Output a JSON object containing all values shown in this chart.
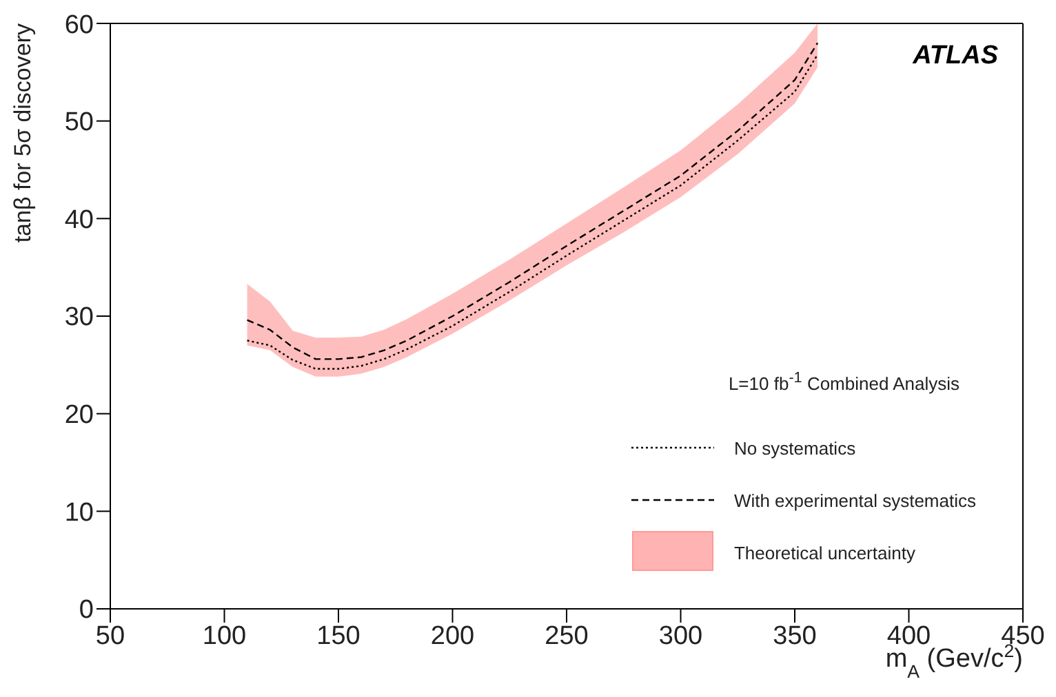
{
  "chart_data": {
    "type": "line",
    "xlabel": "m$_{A}$ (Gev/c$^{2}$)",
    "ylabel": "tanβ for 5σ discovery",
    "legend_title": "L=10 fb$^{-1}$ Combined Analysis",
    "annotations": [
      "ATLAS"
    ],
    "x": [
      110,
      120,
      130,
      140,
      150,
      160,
      170,
      180,
      200,
      225,
      250,
      275,
      300,
      325,
      350,
      360
    ],
    "xlim": [
      50,
      450
    ],
    "xticks": [
      50,
      100,
      150,
      200,
      250,
      300,
      350,
      400,
      450
    ],
    "ylim": [
      0,
      60
    ],
    "yticks": [
      0,
      10,
      20,
      30,
      40,
      50,
      60
    ],
    "grid": false,
    "legend": "bottom right",
    "marker": "none",
    "series": [
      {
        "name": "Theoretical uncertainty",
        "type": "area",
        "color": "#ffb3b3",
        "values": [
          null,
          null,
          null,
          null,
          null,
          null,
          null,
          null,
          null,
          null,
          null,
          null,
          null,
          null,
          null,
          null
        ],
        "lower": [
          27,
          26.5,
          24.8,
          23.8,
          23.8,
          24.1,
          24.8,
          25.8,
          28.2,
          31.6,
          35.2,
          38.6,
          42.2,
          46.6,
          51.8,
          55.5
        ],
        "upper": [
          33.3,
          31.5,
          28.5,
          27.8,
          27.8,
          27.9,
          28.6,
          29.7,
          32.3,
          35.8,
          39.5,
          43.2,
          47,
          51.7,
          57,
          60
        ]
      },
      {
        "name": "No systematics",
        "line_style": "dotted",
        "color": "#000000",
        "values": [
          27.5,
          27,
          25.5,
          24.6,
          24.6,
          24.9,
          25.6,
          26.6,
          29,
          32.5,
          36.2,
          39.8,
          43.4,
          48,
          53,
          56.8
        ]
      },
      {
        "name": "With experimental systematics",
        "line_style": "dashed",
        "color": "#000000",
        "values": [
          29.6,
          28.6,
          26.8,
          25.6,
          25.6,
          25.8,
          26.5,
          27.5,
          30,
          33.5,
          37.2,
          40.8,
          44.4,
          49,
          54.2,
          58
        ]
      }
    ]
  }
}
